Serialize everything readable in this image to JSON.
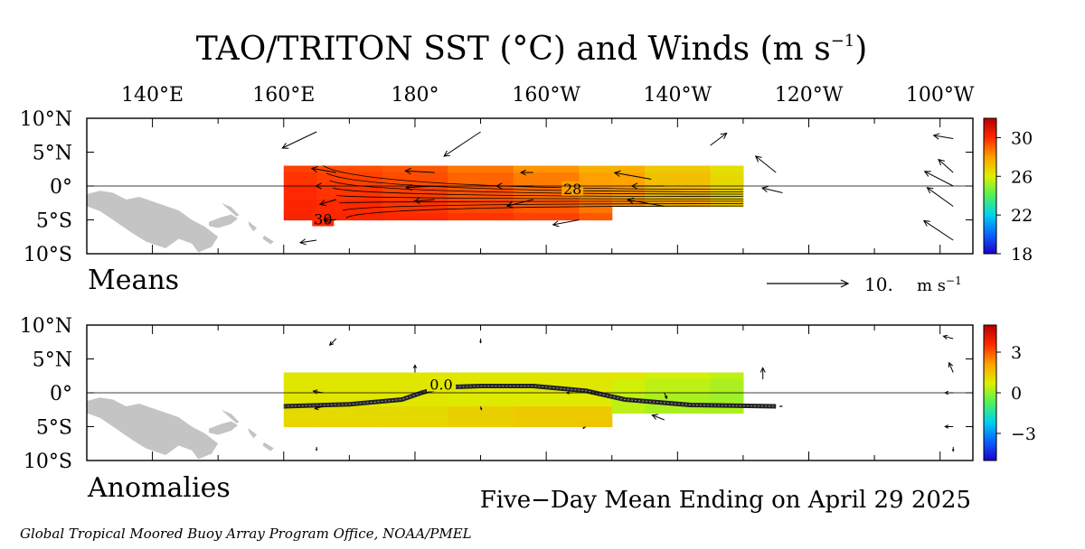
{
  "title_main": "TAO/TRITON SST (°C) and Winds (m s",
  "title_exp": "−1",
  "title_close": ")",
  "lon_labels": [
    "140°E",
    "160°E",
    "180°",
    "160°W",
    "140°W",
    "120°W",
    "100°W"
  ],
  "lat_labels": [
    "10°N",
    "5°N",
    "0°",
    "5°S",
    "10°S"
  ],
  "panel_labels": {
    "means": "Means",
    "anomalies": "Anomalies"
  },
  "wind_scale": {
    "value": "10.",
    "unit": "m s",
    "unit_exp": "−1"
  },
  "footer": {
    "period": "Five−Day Mean Ending on April 29 2025",
    "credit": "Global Tropical Moored Buoy Array Program Office, NOAA/PMEL"
  },
  "colors": {
    "land": "#c4c4c4",
    "colorbar_stops": [
      "#1e00c8",
      "#0a64ff",
      "#00d2f0",
      "#50f05a",
      "#dcf000",
      "#ffa000",
      "#ff2800",
      "#b40000"
    ]
  },
  "chart_data": [
    {
      "type": "heatmap",
      "panel": "Means",
      "variable": "SST (°C)",
      "colorbar": {
        "min": 18,
        "max": 32,
        "ticks": [
          18,
          22,
          26,
          30
        ]
      },
      "xlim": [
        130,
        265
      ],
      "ylim": [
        -10,
        10
      ],
      "x_tick_values": [
        140,
        160,
        180,
        200,
        220,
        240,
        260
      ],
      "y_tick_values": [
        10,
        5,
        0,
        -5,
        -10
      ],
      "contour_labels": [
        {
          "value": "28",
          "lon": 204,
          "lat": -0.5
        },
        {
          "value": "30",
          "lon": 166,
          "lat": -5
        }
      ],
      "sst_fields": [
        {
          "lon": [
            160,
            170,
            180,
            190,
            200,
            210
          ],
          "lat": [
            3,
            1,
            -1,
            -3,
            -5
          ],
          "values": [
            [
              29.6,
              29.4,
              29.2,
              28.7,
              28.2,
              27.6
            ],
            [
              29.8,
              29.6,
              29.4,
              29.0,
              28.6,
              28.0
            ],
            [
              30.0,
              29.8,
              29.6,
              29.3,
              28.9,
              28.3
            ],
            [
              30.1,
              30.0,
              29.8,
              29.5,
              29.2,
              28.7
            ],
            [
              30.2,
              30.1,
              30.0,
              29.8,
              29.6,
              29.2
            ]
          ]
        },
        {
          "lon": [
            210,
            220,
            230
          ],
          "lat": [
            3,
            1,
            -1,
            -3
          ],
          "values": [
            [
              27.6,
              27.0,
              26.4
            ],
            [
              27.9,
              27.2,
              26.6
            ],
            [
              28.1,
              27.4,
              26.8
            ],
            [
              28.3,
              27.7,
              27.1
            ]
          ]
        }
      ],
      "wind_vectors_ms": [
        {
          "lon": 165,
          "lat": 8,
          "u": -4.2,
          "v": -2.0
        },
        {
          "lon": 190,
          "lat": 8,
          "u": -4.5,
          "v": -3.0
        },
        {
          "lon": 225,
          "lat": 6,
          "u": 2.0,
          "v": 1.5
        },
        {
          "lon": 262,
          "lat": 7,
          "u": -2.4,
          "v": 0.4
        },
        {
          "lon": 168,
          "lat": 2,
          "u": -3.0,
          "v": 0.5
        },
        {
          "lon": 183,
          "lat": 2,
          "u": -3.6,
          "v": 0.2
        },
        {
          "lon": 198,
          "lat": 2,
          "u": -1.5,
          "v": 0.0
        },
        {
          "lon": 216,
          "lat": 1,
          "u": -4.5,
          "v": 0.8
        },
        {
          "lon": 235,
          "lat": 2,
          "u": -2.5,
          "v": 2.0
        },
        {
          "lon": 262,
          "lat": 2,
          "u": -1.8,
          "v": 1.6
        },
        {
          "lon": 168,
          "lat": 0,
          "u": -2.5,
          "v": 0.0
        },
        {
          "lon": 183,
          "lat": 0,
          "u": -3.5,
          "v": -0.2
        },
        {
          "lon": 198,
          "lat": 0,
          "u": -4.5,
          "v": 0.0
        },
        {
          "lon": 218,
          "lat": 0,
          "u": -4.0,
          "v": 0.0
        },
        {
          "lon": 236,
          "lat": -1,
          "u": -2.5,
          "v": 0.6
        },
        {
          "lon": 262,
          "lat": 0,
          "u": -3.5,
          "v": 1.8
        },
        {
          "lon": 168,
          "lat": -2,
          "u": -2.0,
          "v": -0.6
        },
        {
          "lon": 183,
          "lat": -2,
          "u": -2.5,
          "v": -0.2
        },
        {
          "lon": 198,
          "lat": -2,
          "u": -3.2,
          "v": -0.8
        },
        {
          "lon": 218,
          "lat": -3,
          "u": -4.5,
          "v": 0.8
        },
        {
          "lon": 262,
          "lat": -3,
          "u": -3.2,
          "v": 2.3
        },
        {
          "lon": 168,
          "lat": -5,
          "u": -1.5,
          "v": 0.0
        },
        {
          "lon": 205,
          "lat": -5,
          "u": -3.2,
          "v": -0.6
        },
        {
          "lon": 262,
          "lat": -8,
          "u": -3.6,
          "v": 2.4
        },
        {
          "lon": 165,
          "lat": -8,
          "u": -2.0,
          "v": -0.3
        }
      ]
    },
    {
      "type": "heatmap",
      "panel": "Anomalies",
      "variable": "SST anomaly (°C)",
      "colorbar": {
        "min": -5,
        "max": 5,
        "ticks": [
          -3,
          0,
          3
        ]
      },
      "xlim": [
        130,
        265
      ],
      "ylim": [
        -10,
        10
      ],
      "x_tick_values": [
        140,
        160,
        180,
        200,
        220,
        240,
        260
      ],
      "y_tick_values": [
        10,
        5,
        0,
        -5,
        -10
      ],
      "contour_labels": [
        {
          "value": "0.0",
          "lon": 184,
          "lat": 1
        }
      ],
      "zero_contour": [
        [
          160,
          -2
        ],
        [
          170,
          -1.7
        ],
        [
          178,
          -1
        ],
        [
          181,
          0
        ],
        [
          184,
          0.8
        ],
        [
          190,
          1
        ],
        [
          198,
          1
        ],
        [
          206,
          0.3
        ],
        [
          212,
          -1
        ],
        [
          222,
          -1.8
        ],
        [
          235,
          -2
        ]
      ],
      "anomaly_fields": [
        {
          "lon": [
            160,
            170,
            180,
            190,
            200,
            210
          ],
          "lat": [
            3,
            1,
            -1,
            -3,
            -5
          ],
          "values": [
            [
              0.9,
              0.9,
              0.9,
              0.9,
              0.9,
              0.9
            ],
            [
              0.9,
              0.9,
              0.9,
              0.9,
              0.9,
              0.9
            ],
            [
              0.9,
              0.9,
              0.9,
              0.8,
              0.8,
              0.8
            ],
            [
              1.1,
              1.1,
              1.1,
              1.3,
              1.4,
              1.4
            ],
            [
              1.2,
              1.2,
              1.2,
              1.3,
              1.4,
              1.5
            ]
          ]
        },
        {
          "lon": [
            210,
            220,
            230
          ],
          "lat": [
            3,
            1,
            -1,
            -3
          ],
          "values": [
            [
              0.9,
              0.6,
              0.4
            ],
            [
              0.6,
              0.4,
              0.2
            ],
            [
              0.4,
              0.2,
              0.1
            ],
            [
              0.4,
              0.2,
              0.2
            ]
          ]
        }
      ],
      "wind_vectors_ms": [
        {
          "lon": 168,
          "lat": 8,
          "u": -0.8,
          "v": -0.8
        },
        {
          "lon": 190,
          "lat": 8,
          "u": 0.0,
          "v": -0.5
        },
        {
          "lon": 262,
          "lat": 8,
          "u": -1.2,
          "v": 0.3
        },
        {
          "lon": 180,
          "lat": 3,
          "u": 0.0,
          "v": 0.9
        },
        {
          "lon": 233,
          "lat": 2,
          "u": 0.0,
          "v": 1.4
        },
        {
          "lon": 262,
          "lat": 3,
          "u": -0.5,
          "v": 1.2
        },
        {
          "lon": 166,
          "lat": 0,
          "u": -1.2,
          "v": 0.2
        },
        {
          "lon": 204,
          "lat": 0,
          "u": -0.7,
          "v": 0.0
        },
        {
          "lon": 218,
          "lat": 0,
          "u": 0.3,
          "v": -0.7
        },
        {
          "lon": 262,
          "lat": 0,
          "u": -1.0,
          "v": 0.0
        },
        {
          "lon": 166,
          "lat": -2,
          "u": -1.0,
          "v": -0.3
        },
        {
          "lon": 190,
          "lat": -2,
          "u": 0.1,
          "v": -0.4
        },
        {
          "lon": 218,
          "lat": -4,
          "u": -1.5,
          "v": 0.6
        },
        {
          "lon": 206,
          "lat": -5,
          "u": -0.3,
          "v": -0.2
        },
        {
          "lon": 236,
          "lat": -2,
          "u": -0.3,
          "v": 0.0
        },
        {
          "lon": 262,
          "lat": -5,
          "u": -1.0,
          "v": 0.0
        },
        {
          "lon": 165,
          "lat": -8,
          "u": 0.0,
          "v": -0.4
        },
        {
          "lon": 262,
          "lat": -8,
          "u": 0.0,
          "v": -0.5
        }
      ]
    }
  ]
}
